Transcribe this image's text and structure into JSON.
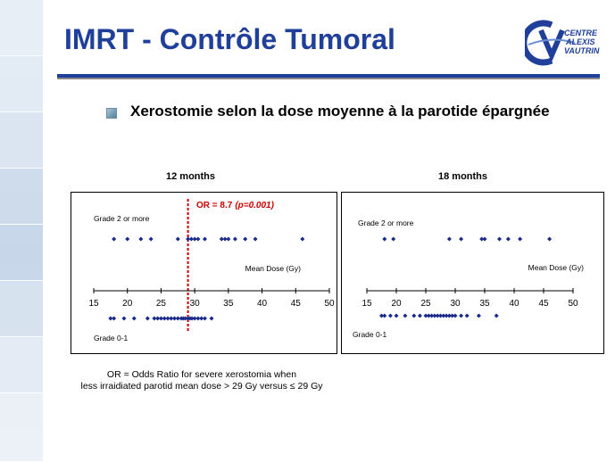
{
  "slide": {
    "title": "IMRT - Contrôle Tumoral",
    "logo_text": [
      "CENTRE",
      "ALEXIS",
      "VAUTRIN"
    ],
    "bullet_text": "Xerostomie selon la dose moyenne à la parotide épargnée",
    "caption_line1": "OR = Odds Ratio for severe xerostomia when",
    "caption_line2": "less irraidiated parotid mean dose > 29 Gy versus ≤ 29 Gy"
  },
  "colors": {
    "title": "#1f3f9a",
    "points": "#1a2a8a",
    "threshold": "#cc0000"
  },
  "chart_data": [
    {
      "type": "scatter",
      "title": "12 months",
      "xlabel": "Mean Dose (Gy)",
      "xlim": [
        15,
        50
      ],
      "ticks": [
        15,
        20,
        25,
        30,
        35,
        40,
        45,
        50
      ],
      "group_labels": {
        "upper": "Grade 2 or more",
        "lower": "Grade 0-1"
      },
      "annotation_or": "OR = 8.7",
      "annotation_p": "(p=0.001)",
      "threshold": 29,
      "series": [
        {
          "name": "Grade 2 or more",
          "x": [
            18,
            20,
            22,
            23.5,
            27.5,
            29,
            29.5,
            30,
            30.5,
            31.5,
            34,
            34.5,
            35,
            36,
            37.5,
            39,
            46
          ]
        },
        {
          "name": "Grade 0-1",
          "x": [
            17.5,
            18,
            19.5,
            21,
            23,
            24,
            24.5,
            25,
            25.5,
            26,
            26.5,
            27,
            27.5,
            28,
            28.3,
            28.6,
            29,
            29.3,
            29.6,
            30,
            30.5,
            31,
            31.5,
            32.5
          ]
        }
      ]
    },
    {
      "type": "scatter",
      "title": "18 months",
      "xlabel": "Mean Dose (Gy)",
      "xlim": [
        15,
        50
      ],
      "ticks": [
        15,
        20,
        25,
        30,
        35,
        40,
        45,
        50
      ],
      "group_labels": {
        "upper": "Grade 2 or more",
        "lower": "Grade 0-1"
      },
      "series": [
        {
          "name": "Grade 2 or more",
          "x": [
            18,
            19.5,
            29,
            31,
            34.5,
            35,
            37.5,
            39,
            41,
            46
          ]
        },
        {
          "name": "Grade 0-1",
          "x": [
            17.5,
            18,
            19,
            20,
            21.5,
            23,
            24,
            25,
            25.5,
            26,
            26.5,
            27,
            27.5,
            28,
            28.5,
            29,
            29.5,
            30,
            31,
            32,
            34,
            37
          ]
        }
      ]
    }
  ]
}
